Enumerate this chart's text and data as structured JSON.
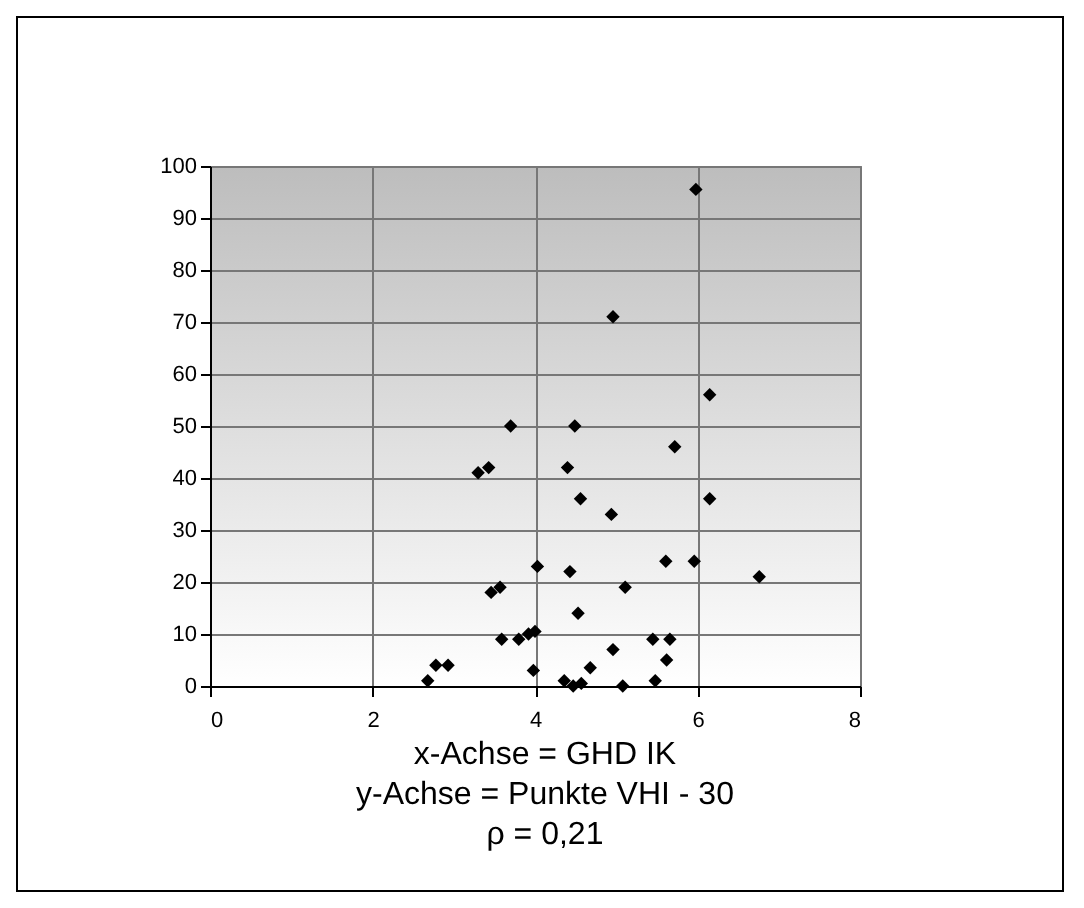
{
  "chart_data": {
    "type": "scatter",
    "x": [
      2.68,
      2.78,
      2.93,
      3.3,
      3.43,
      3.46,
      3.57,
      3.59,
      3.7,
      3.8,
      3.92,
      3.98,
      4.0,
      4.03,
      4.36,
      4.4,
      4.43,
      4.47,
      4.49,
      4.53,
      4.56,
      4.57,
      4.68,
      4.94,
      4.96,
      4.96,
      5.08,
      5.11,
      5.45,
      5.48,
      5.61,
      5.62,
      5.66,
      5.72,
      5.96,
      5.98,
      6.15,
      6.15,
      6.76
    ],
    "values": [
      1,
      4,
      4,
      41,
      42,
      18,
      19,
      9,
      50,
      9,
      10,
      3,
      10.5,
      23,
      1,
      42,
      22,
      0,
      50,
      14,
      36,
      0.5,
      3.5,
      33,
      71,
      7,
      0,
      19,
      9,
      1,
      24,
      5,
      9,
      46,
      24,
      95.5,
      56,
      36,
      21
    ],
    "color": "#000000",
    "marker": "diamond",
    "xlim": [
      0,
      8
    ],
    "xticks": [
      0,
      2,
      4,
      6,
      8
    ],
    "ylim": [
      0,
      100
    ],
    "yticks": [
      0,
      10,
      20,
      30,
      40,
      50,
      60,
      70,
      80,
      90,
      100
    ],
    "grid": true,
    "annotations": [
      "x-Achse = GHD IK",
      "y-Achse = Punkte VHI - 30",
      "ρ = 0,21"
    ]
  }
}
